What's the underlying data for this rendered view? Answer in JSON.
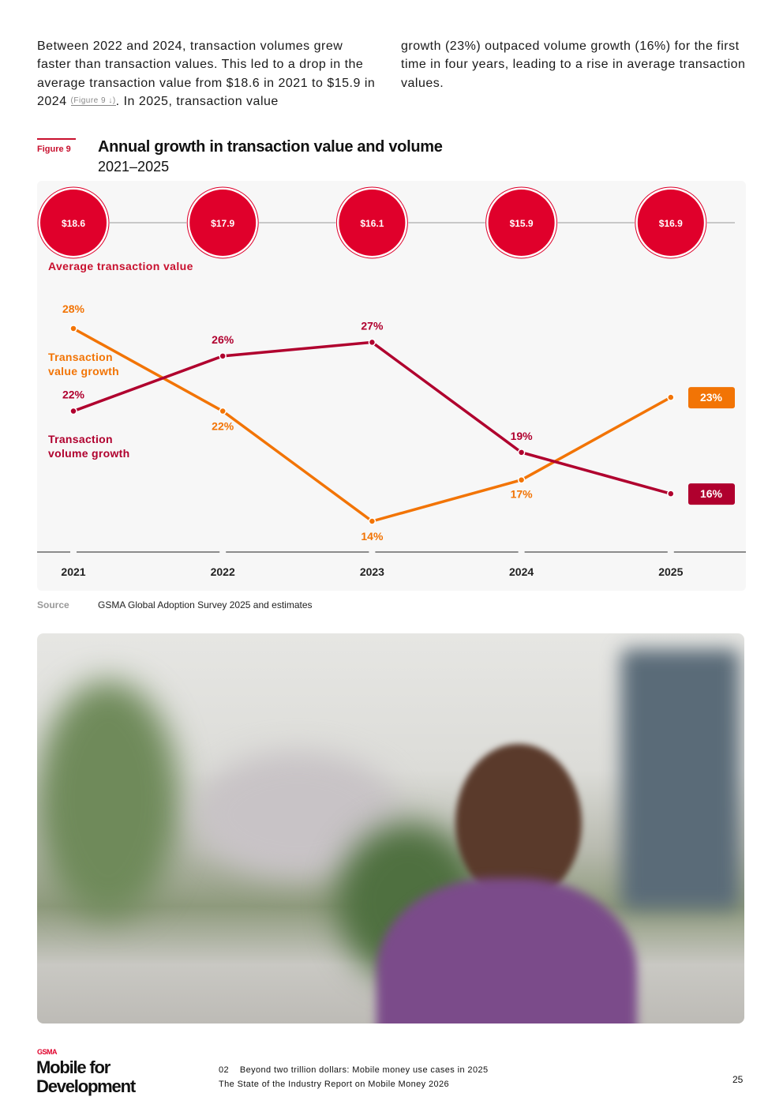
{
  "body_text": {
    "col1_before": "Between 2022 and 2024, transaction volumes grew faster than transaction values. This led to a drop in the average transaction value from $18.6 in 2021 to $15.9 in 2024 ",
    "figure_ref": "(Figure 9 ↓)",
    "col1_after": ". In 2025, transaction value",
    "col2": "growth (23%) outpaced volume growth (16%) for the first time in four years, leading to a rise in average transaction values."
  },
  "figure": {
    "label": "Figure 9",
    "title": "Annual growth in transaction value and volume",
    "subtitle": "2021–2025"
  },
  "chart_data": {
    "type": "line",
    "title": "Annual growth in transaction value and volume",
    "categories": [
      "2021",
      "2022",
      "2023",
      "2024",
      "2025"
    ],
    "avg_value_label": "Average transaction value",
    "avg_values": [
      "$18.6",
      "$17.9",
      "$16.1",
      "$15.9",
      "$16.9"
    ],
    "ylim": [
      14,
      28
    ],
    "series": [
      {
        "name": "Transaction value growth",
        "label_lines": [
          "Transaction",
          "value growth"
        ],
        "color": "#f27405",
        "values": [
          28,
          22,
          14,
          17,
          23
        ],
        "labels": [
          "28%",
          "22%",
          "14%",
          "17%",
          "23%"
        ]
      },
      {
        "name": "Transaction volume growth",
        "label_lines": [
          "Transaction",
          "volume growth"
        ],
        "color": "#b0002e",
        "values": [
          22,
          26,
          27,
          19,
          16
        ],
        "labels": [
          "22%",
          "26%",
          "27%",
          "19%",
          "16%"
        ]
      }
    ],
    "circle_color": "#e0002b"
  },
  "source": {
    "label": "Source",
    "text": "GSMA Global Adoption Survey 2025 and estimates"
  },
  "footer": {
    "gsma": "GSMA",
    "brand_line1": "Mobile for",
    "brand_line2": "Development",
    "chapter": "02    Beyond two trillion dollars: Mobile money use cases in 2025",
    "report": "The State of the Industry Report on Mobile Money 2026",
    "page": "25"
  }
}
